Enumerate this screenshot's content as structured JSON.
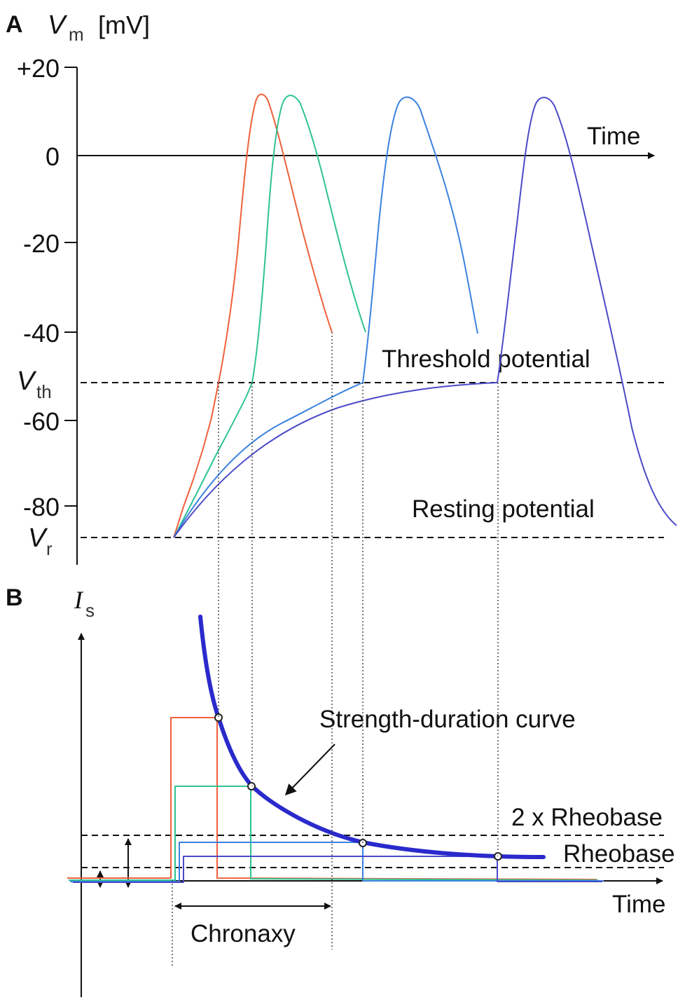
{
  "panel_a": {
    "panel_label": "A",
    "y_axis_var": "V",
    "y_axis_var_sub": "m",
    "y_axis_unit": "[mV]",
    "ticks": [
      "+20",
      "0",
      "-20",
      "-40",
      "-60",
      "-80"
    ],
    "v_th_var": "V",
    "v_th_sub": "th",
    "v_r_var": "V",
    "v_r_sub": "r",
    "x_label": "Time",
    "threshold_label": "Threshold potential",
    "resting_label": "Resting potential"
  },
  "panel_b": {
    "panel_label": "B",
    "y_axis_var": "I",
    "y_axis_var_sub": "s",
    "x_label": "Time",
    "curve_label": "Strength-duration curve",
    "double_rheobase_label": "2 x Rheobase",
    "rheobase_label": "Rheobase",
    "chronaxy_label": "Chronaxy"
  },
  "colors": {
    "trace_1": "#f0603a",
    "trace_2": "#2fc393",
    "trace_3": "#3b82e0",
    "trace_4": "#4a4ac8",
    "strength_duration_curve": "#2a2acc",
    "axes": "#111111"
  }
}
